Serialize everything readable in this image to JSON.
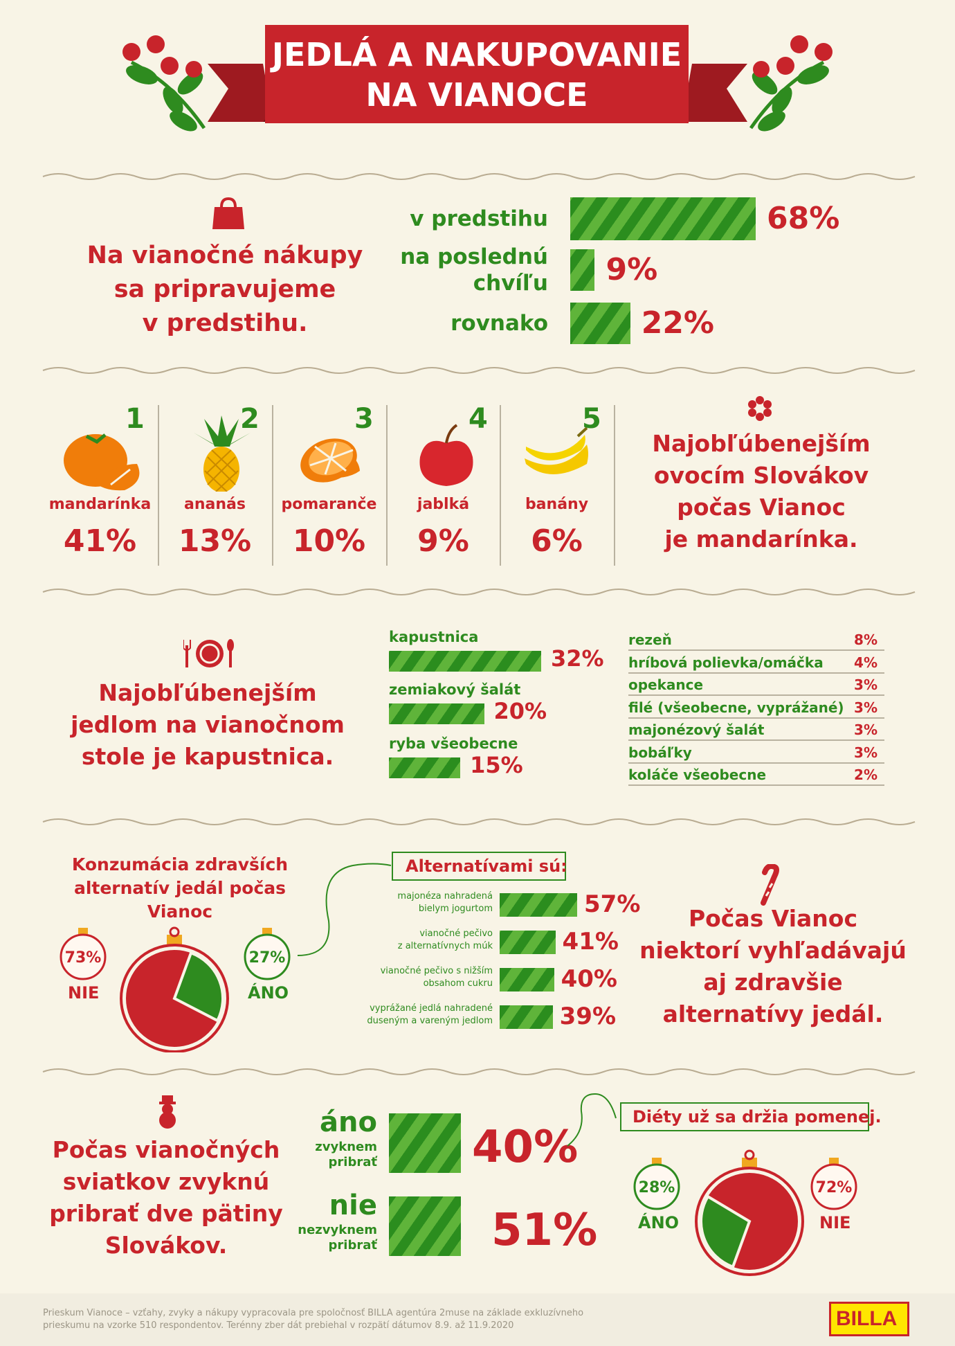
{
  "title": {
    "line1": "JEDLÁ A NAKUPOVANIE",
    "line2": "NA VIANOCE"
  },
  "colors": {
    "red": "#c8242b",
    "green": "#2e8b1f",
    "light_green": "#5fb43a",
    "background": "#f8f4e6",
    "billa_yellow": "#ffe600"
  },
  "shopping": {
    "icon": "shopping-bag-icon",
    "statement": [
      "Na vianočné nákupy",
      "sa pripravujeme",
      "v predstihu."
    ],
    "chart_data": {
      "type": "bar",
      "categories": [
        "v predstihu",
        "na poslednú chvíľu",
        "rovnako"
      ],
      "category_lines": [
        [
          "v predstihu"
        ],
        [
          "na poslednú",
          "chvíľu"
        ],
        [
          "rovnako"
        ]
      ],
      "values": [
        68,
        9,
        22
      ],
      "labels": [
        "68%",
        "9%",
        "22%"
      ]
    }
  },
  "fruit": {
    "icon": "snowflake-icon",
    "statement": [
      "Najobľúbenejším",
      "ovocím Slovákov",
      "počas Vianoc",
      "je mandarínka."
    ],
    "items": [
      {
        "rank": "1",
        "name": "mandarínka",
        "pct": "41%",
        "icon": "mandarin-icon"
      },
      {
        "rank": "2",
        "name": "ananás",
        "pct": "13%",
        "icon": "pineapple-icon"
      },
      {
        "rank": "3",
        "name": "pomaranče",
        "pct": "10%",
        "icon": "orange-icon"
      },
      {
        "rank": "4",
        "name": "jablká",
        "pct": "9%",
        "icon": "apple-icon"
      },
      {
        "rank": "5",
        "name": "banány",
        "pct": "6%",
        "icon": "banana-icon"
      }
    ],
    "chart_data": {
      "type": "table",
      "categories": [
        "mandarínka",
        "ananás",
        "pomaranče",
        "jablká",
        "banány"
      ],
      "values": [
        41,
        13,
        10,
        9,
        6
      ]
    }
  },
  "meals": {
    "icon": "plate-cutlery-icon",
    "statement": [
      "Najobľúbenejším",
      "jedlom na vianočnom",
      "stole je kapustnica."
    ],
    "chart_data": {
      "type": "bar",
      "categories": [
        "kapustnica",
        "zemiakový šalát",
        "ryba všeobecne"
      ],
      "values": [
        32,
        20,
        15
      ],
      "labels": [
        "32%",
        "20%",
        "15%"
      ]
    },
    "table": [
      {
        "name": "rezeň",
        "pct": "8%"
      },
      {
        "name": "hríbová polievka/omáčka",
        "pct": "4%"
      },
      {
        "name": "opekance",
        "pct": "3%"
      },
      {
        "name": "filé (všeobecne, vyprážané)",
        "pct": "3%"
      },
      {
        "name": "majonézový šalát",
        "pct": "3%"
      },
      {
        "name": "bobáľky",
        "pct": "3%"
      },
      {
        "name": "koláče všeobecne",
        "pct": "2%"
      }
    ]
  },
  "healthy": {
    "heading": [
      "Konzumácia zdravších",
      "alternatív jedál počas Vianoc"
    ],
    "pie": {
      "type": "pie",
      "categories": [
        "NIE",
        "ÁNO"
      ],
      "values": [
        73,
        27
      ],
      "labels": [
        "73%",
        "27%"
      ]
    },
    "tag": "Alternatívami sú:",
    "chart_data": {
      "type": "bar",
      "categories": [
        [
          "majonéza nahradená",
          "bielym jogurtom"
        ],
        [
          "vianočné pečivo",
          "z alternatívnych múk"
        ],
        [
          "vianočné pečivo s nižším",
          "obsahom cukru"
        ],
        [
          "vyprážané jedlá nahradené",
          "duseným a vareným jedlom"
        ]
      ],
      "values": [
        57,
        41,
        40,
        39
      ],
      "labels": [
        "57%",
        "41%",
        "40%",
        "39%"
      ]
    },
    "icon": "candy-cane-icon",
    "statement": [
      "Počas Vianoc",
      "niektorí vyhľadávajú",
      "aj zdravšie",
      "alternatívy jedál."
    ]
  },
  "weight": {
    "icon": "snowman-icon",
    "statement": [
      "Počas vianočných",
      "sviatkov zvyknú",
      "pribrať dve pätiny",
      "Slovákov."
    ],
    "chart_data": {
      "type": "bar",
      "categories": [
        "áno",
        "nie"
      ],
      "sublabels": [
        [
          "zvyknem",
          "pribrať"
        ],
        [
          "nezvyknem",
          "pribrať"
        ]
      ],
      "values": [
        40,
        51
      ],
      "labels": [
        "40%",
        "51%"
      ]
    },
    "tag": "Diéty už sa držia pomenej.",
    "pie": {
      "type": "pie",
      "categories": [
        "ÁNO",
        "NIE"
      ],
      "values": [
        28,
        72
      ],
      "labels": [
        "28%",
        "72%"
      ]
    }
  },
  "footer": {
    "line1": "Prieskum Vianoce – vzťahy, zvyky a nákupy vypracovala pre spoločnosť BILLA agentúra 2muse na základe exkluzívneho",
    "line2": "prieskumu na vzorke 510 respondentov. Terénny zber dát prebiehal v rozpätí dátumov 8.9. až 11.9.2020",
    "logo": "BILLA"
  }
}
